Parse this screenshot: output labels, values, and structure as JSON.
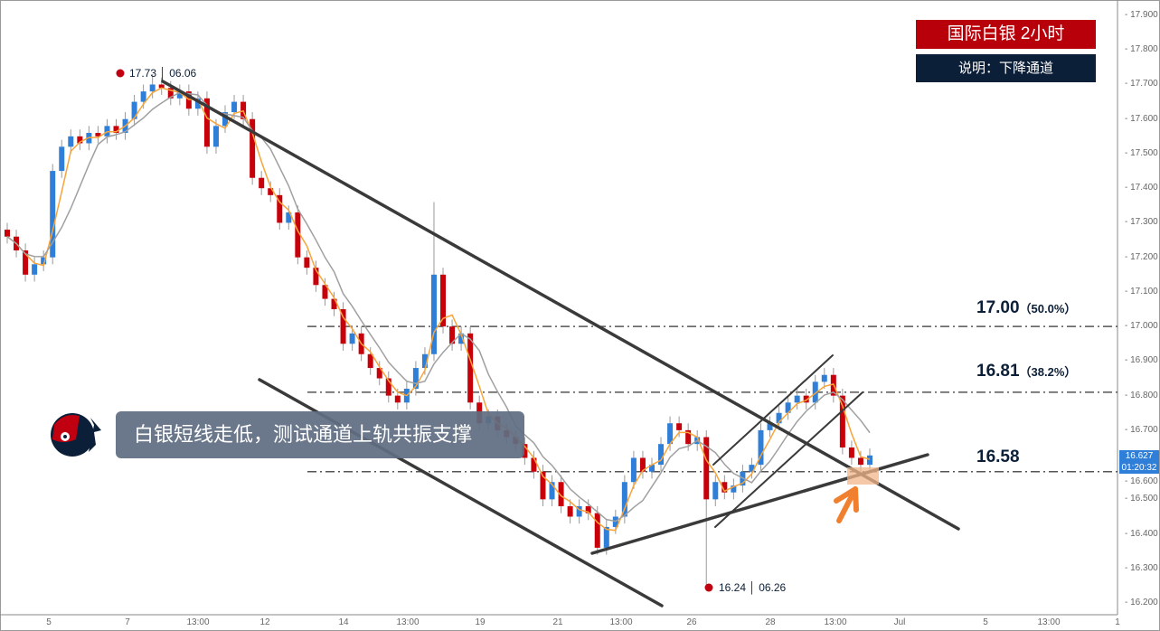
{
  "header": {
    "title": "国际白银  2小时",
    "subtitle": "说明：下降通道"
  },
  "annotation": {
    "note": "白银短线走低，测试通道上轨共振支撑"
  },
  "colors": {
    "up": "#2f7fd8",
    "down": "#c8000a",
    "ma_fast": "#f7a53a",
    "ma_slow": "#a0a0a0",
    "title_bg": "#b8000a",
    "subtitle_bg": "#0b1f38",
    "highlight": "#f2b58a",
    "arrow": "#f07f2e"
  },
  "icons": {
    "logo": "head-profile-logo-icon"
  },
  "chart_data": {
    "type": "candlestick",
    "ylim": [
      16.2,
      17.9
    ],
    "y_ticks": [
      "17.900",
      "17.800",
      "17.700",
      "17.600",
      "17.500",
      "17.400",
      "17.300",
      "17.200",
      "17.100",
      "17.000",
      "16.900",
      "16.800",
      "16.700",
      "16.600",
      "16.500",
      "16.400",
      "16.300",
      "16.200"
    ],
    "x_ticks": [
      "5",
      "7",
      "13:00",
      "12",
      "14",
      "13:00",
      "19",
      "21",
      "13:00",
      "26",
      "28",
      "13:00",
      "Jul",
      "5",
      "13:00",
      "1"
    ],
    "close": [
      17.26,
      17.22,
      17.15,
      17.18,
      17.2,
      17.45,
      17.52,
      17.55,
      17.53,
      17.56,
      17.55,
      17.58,
      17.56,
      17.6,
      17.65,
      17.68,
      17.7,
      17.69,
      17.66,
      17.68,
      17.63,
      17.66,
      17.52,
      17.58,
      17.62,
      17.65,
      17.6,
      17.43,
      17.4,
      17.38,
      17.3,
      17.33,
      17.2,
      17.17,
      17.12,
      17.08,
      17.05,
      16.95,
      16.98,
      16.92,
      16.88,
      16.85,
      16.8,
      16.78,
      16.82,
      16.88,
      16.92,
      17.15,
      17.0,
      16.95,
      16.98,
      16.78,
      16.72,
      16.74,
      16.7,
      16.68,
      16.66,
      16.62,
      16.58,
      16.5,
      16.55,
      16.48,
      16.45,
      16.48,
      16.46,
      16.36,
      16.42,
      16.45,
      16.55,
      16.62,
      16.58,
      16.6,
      16.66,
      16.72,
      16.7,
      16.66,
      16.68,
      16.5,
      16.55,
      16.52,
      16.54,
      16.58,
      16.6,
      16.7,
      16.72,
      16.75,
      16.78,
      16.8,
      16.78,
      16.84,
      16.86,
      16.8,
      16.65,
      16.62,
      16.6,
      16.627
    ],
    "spikes": [
      {
        "i": 16,
        "high": 17.73
      },
      {
        "i": 47,
        "high": 17.36
      },
      {
        "i": 65,
        "low": 16.34
      },
      {
        "i": 77,
        "low": 16.24
      }
    ],
    "ma_periods": [
      3,
      6
    ],
    "levels": [
      {
        "price": 17.0,
        "label": "17.00",
        "pct": "（50.0%）"
      },
      {
        "price": 16.81,
        "label": "16.81",
        "pct": "（38.2%）"
      },
      {
        "price": 16.58,
        "label": "16.58",
        "pct": ""
      }
    ],
    "high_marker": {
      "price": "17.73",
      "date": "06.06"
    },
    "low_marker": {
      "price": "16.24",
      "date": "06.26"
    },
    "current": {
      "price": "16.627",
      "countdown": "01:20:32"
    }
  }
}
